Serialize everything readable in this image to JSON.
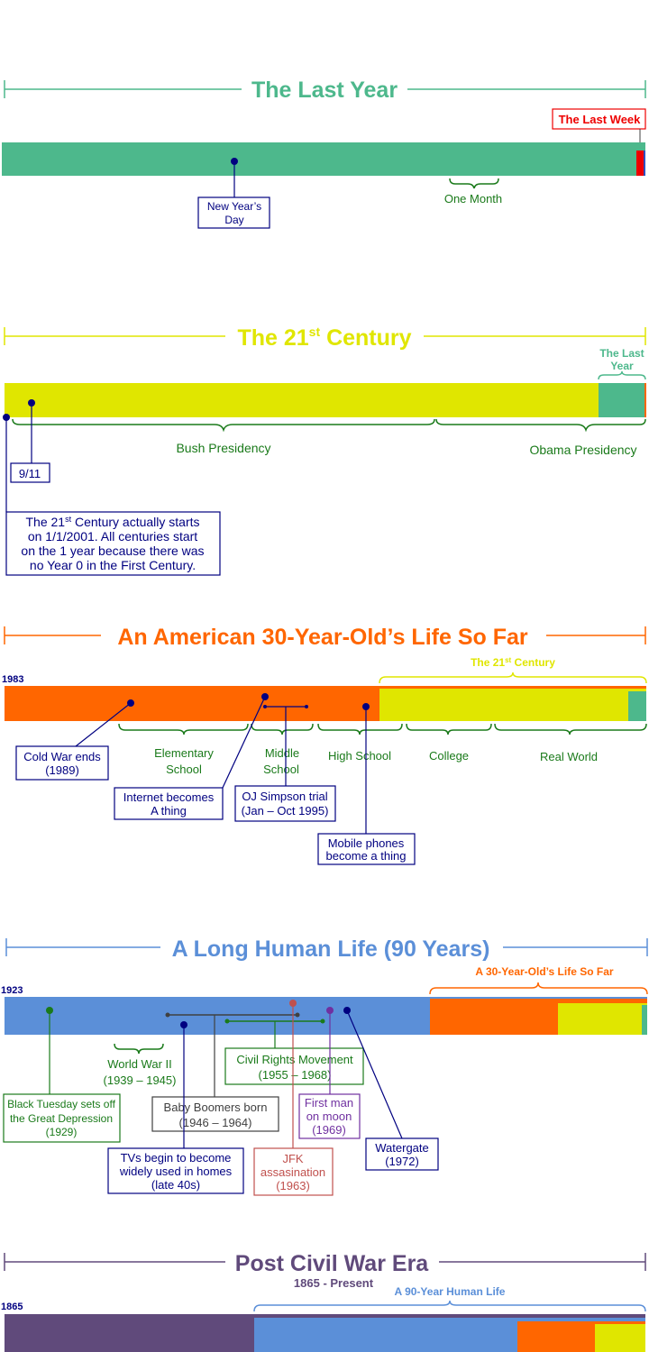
{
  "colors": {
    "last_year": "#4db88c",
    "century": "#e0e600",
    "thirty": "#ff6600",
    "long_life": "#5b8fd8",
    "civil_war": "#604a7b",
    "navy": "#000080",
    "red": "#ee0000",
    "green": "#1a7a1a",
    "dark_red": "#c0504d",
    "purple": "#7030a0",
    "dark_gray": "#404040"
  },
  "sections": {
    "last_year": {
      "title": "The Last Year",
      "last_week": "The Last Week",
      "new_years_1": "New Year’s",
      "new_years_2": "Day",
      "one_month": "One Month"
    },
    "century": {
      "title_main": "The 21",
      "title_sup": "st",
      "title_end": " Century",
      "last_year_1": "The Last",
      "last_year_2": "Year",
      "bush": "Bush Presidency",
      "obama": "Obama Presidency",
      "nine_eleven": "9/11",
      "note_1a": "The 21",
      "note_1sup": "st",
      "note_1b": " Century actually starts",
      "note_2": "on 1/1/2001. All centuries start",
      "note_3": "on the 1 year because there was",
      "note_4": "no Year 0 in the First Century."
    },
    "thirty": {
      "title": "An American 30-Year-Old’s Life So Far",
      "start_year": "1983",
      "century_a": "The 21",
      "century_sup": "st",
      "century_b": " Century",
      "elementary_1": "Elementary",
      "elementary_2": "School",
      "middle_1": "Middle",
      "middle_2": "School",
      "high_school": "High School",
      "college": "College",
      "real_world": "Real World",
      "cold_war_1": "Cold War ends",
      "cold_war_2": "(1989)",
      "internet_1": "Internet becomes",
      "internet_2": "A thing",
      "oj_1": "OJ Simpson trial",
      "oj_2": "(Jan – Oct 1995)",
      "mobile_1": "Mobile phones",
      "mobile_2": "become a thing"
    },
    "long_life": {
      "title": "A Long Human Life (90 Years)",
      "start_year": "1923",
      "thirty_label": "A 30-Year-Old’s Life So Far",
      "ww2_1": "World War II",
      "ww2_2": "(1939 – 1945)",
      "civil_rights_1": "Civil Rights Movement",
      "civil_rights_2": "(1955 – 1968)",
      "black_tuesday_1": "Black Tuesday sets off",
      "black_tuesday_2": "the Great Depression",
      "black_tuesday_3": "(1929)",
      "boomers_1": "Baby Boomers born",
      "boomers_2": "(1946 – 1964)",
      "moon_1": "First man",
      "moon_2": "on moon",
      "moon_3": "(1969)",
      "watergate_1": "Watergate",
      "watergate_2": "(1972)",
      "tvs_1": "TVs begin to become",
      "tvs_2": "widely used in homes",
      "tvs_3": "(late 40s)",
      "jfk_1": "JFK",
      "jfk_2": "assasination",
      "jfk_3": "(1963)"
    },
    "civil_war": {
      "title": "Post Civil War Era",
      "subtitle": "1865 - Present",
      "start_year": "1865",
      "ninety_label": "A 90-Year Human Life"
    }
  }
}
